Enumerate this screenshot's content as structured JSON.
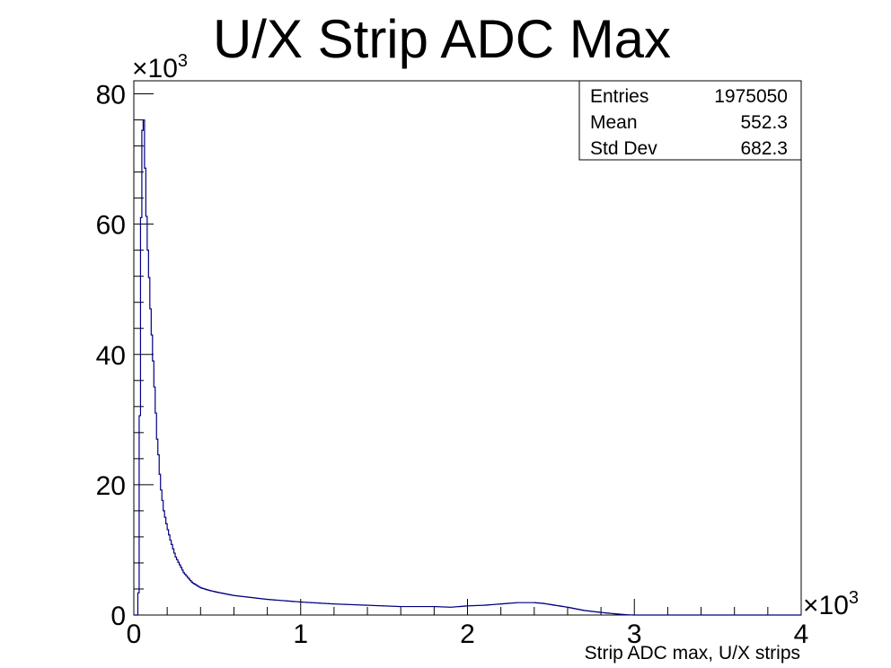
{
  "chart_data": {
    "type": "histogram",
    "title": "U/X Strip ADC Max",
    "xlabel": "Strip ADC max, U/X strips",
    "ylabel": "",
    "xlim": [
      0,
      4
    ],
    "ylim": [
      0,
      82
    ],
    "x_multiplier": "×10",
    "x_multiplier_exp": "3",
    "y_multiplier": "×10",
    "y_multiplier_exp": "3",
    "x_ticks": [
      "0",
      "1",
      "2",
      "3",
      "4"
    ],
    "y_ticks": [
      "0",
      "20",
      "40",
      "60",
      "80"
    ],
    "line_color": "#000080",
    "grid": false,
    "legend": "none",
    "series": [
      {
        "x": [
          0.025,
          0.03,
          0.035,
          0.04,
          0.045,
          0.05,
          0.055,
          0.06,
          0.065,
          0.07,
          0.075,
          0.08,
          0.09,
          0.1,
          0.11,
          0.12,
          0.13,
          0.14,
          0.15,
          0.16,
          0.17,
          0.18,
          0.2,
          0.22,
          0.25,
          0.28,
          0.3,
          0.35,
          0.4,
          0.45,
          0.5,
          0.6,
          0.7,
          0.8,
          0.9,
          1.0,
          1.2,
          1.4,
          1.6,
          1.8,
          1.9,
          2.0,
          2.1,
          2.2,
          2.3,
          2.4,
          2.45,
          2.5,
          2.6,
          2.7,
          2.8,
          2.9,
          2.95,
          3.0
        ],
        "y": [
          1,
          5,
          26,
          49,
          64,
          72,
          78,
          76,
          71,
          67,
          62,
          58,
          53,
          47,
          42,
          37,
          32,
          27,
          24,
          20,
          18,
          16,
          13.5,
          11.5,
          9,
          7.5,
          6.5,
          5,
          4.2,
          3.8,
          3.5,
          3.0,
          2.7,
          2.4,
          2.2,
          2.0,
          1.7,
          1.5,
          1.3,
          1.3,
          1.2,
          1.4,
          1.5,
          1.7,
          1.9,
          1.9,
          1.8,
          1.6,
          1.2,
          0.7,
          0.4,
          0.15,
          0.05,
          0.0
        ]
      }
    ]
  },
  "stats": {
    "entries_label": "Entries",
    "entries_value": "1975050",
    "mean_label": "Mean",
    "mean_value": "552.3",
    "stddev_label": "Std Dev",
    "stddev_value": "682.3"
  }
}
